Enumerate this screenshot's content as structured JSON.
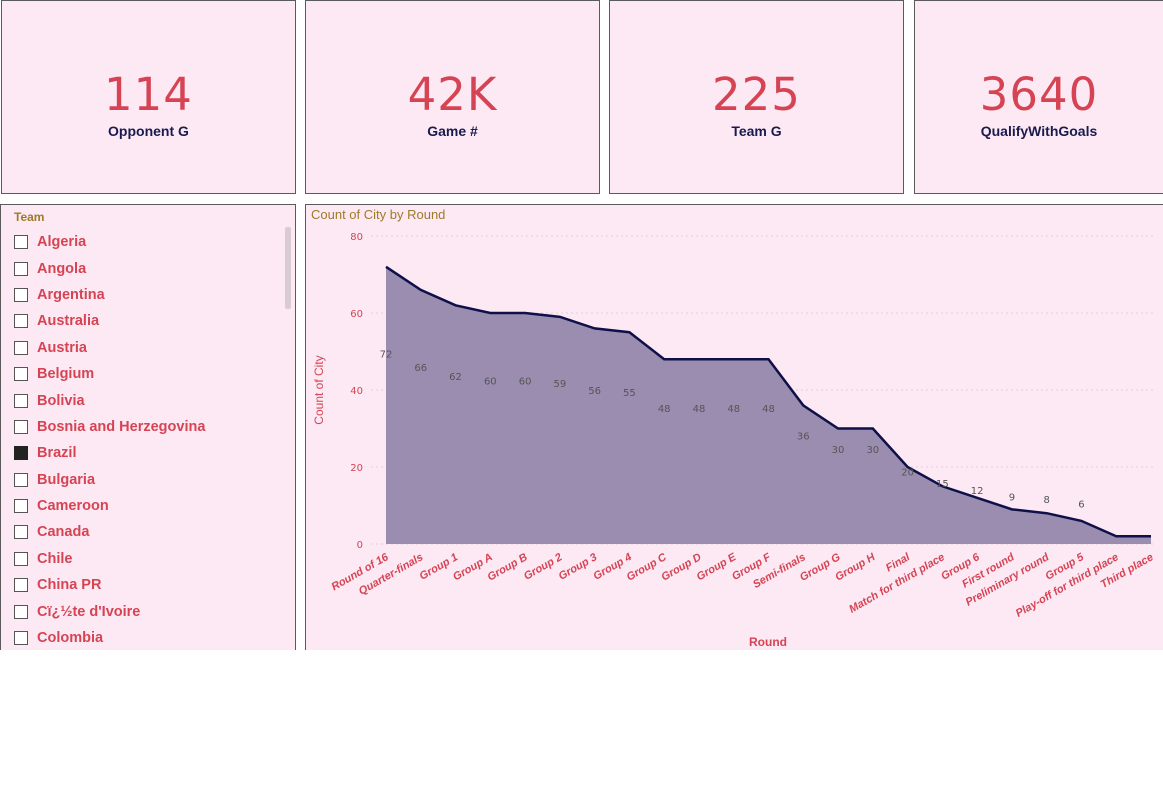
{
  "cards": [
    {
      "value": "114",
      "label": "Opponent G"
    },
    {
      "value": "42K",
      "label": "Game #"
    },
    {
      "value": "225",
      "label": "Team G"
    },
    {
      "value": "3640",
      "label": "QualifyWithGoals"
    }
  ],
  "slicer": {
    "title": "Team",
    "items": [
      {
        "label": "Algeria",
        "checked": false
      },
      {
        "label": "Angola",
        "checked": false
      },
      {
        "label": "Argentina",
        "checked": false
      },
      {
        "label": "Australia",
        "checked": false
      },
      {
        "label": "Austria",
        "checked": false
      },
      {
        "label": "Belgium",
        "checked": false
      },
      {
        "label": "Bolivia",
        "checked": false
      },
      {
        "label": "Bosnia and Herzegovina",
        "checked": false
      },
      {
        "label": "Brazil",
        "checked": true
      },
      {
        "label": "Bulgaria",
        "checked": false
      },
      {
        "label": "Cameroon",
        "checked": false
      },
      {
        "label": "Canada",
        "checked": false
      },
      {
        "label": "Chile",
        "checked": false
      },
      {
        "label": "China PR",
        "checked": false
      },
      {
        "label": "Cï¿½te d'Ivoire",
        "checked": false
      },
      {
        "label": "Colombia",
        "checked": false
      }
    ]
  },
  "chart_data": {
    "type": "area",
    "title": "Count of City by Round",
    "xlabel": "Round",
    "ylabel": "Count of City",
    "ylim": [
      0,
      80
    ],
    "yticks": [
      0,
      20,
      40,
      60,
      80
    ],
    "grid": true,
    "categories": [
      "Round of 16",
      "Quarter-finals",
      "Group 1",
      "Group A",
      "Group B",
      "Group 2",
      "Group 3",
      "Group 4",
      "Group C",
      "Group D",
      "Group E",
      "Group F",
      "Semi-finals",
      "Group G",
      "Group H",
      "Final",
      "Match for third place",
      "Group 6",
      "First round",
      "Preliminary round",
      "Group 5",
      "Play-off for third place",
      "Third place"
    ],
    "values": [
      72,
      66,
      62,
      60,
      60,
      59,
      56,
      55,
      48,
      48,
      48,
      48,
      36,
      30,
      30,
      20,
      15,
      12,
      9,
      8,
      6,
      2,
      2
    ],
    "data_labels": [
      "72",
      "66",
      "62",
      "60",
      "60",
      "59",
      "56",
      "55",
      "48",
      "48",
      "48",
      "48",
      "36",
      "30",
      "30",
      "20",
      "15",
      "12",
      "9",
      "8",
      "6",
      "",
      ""
    ],
    "colors": {
      "fill": "#9a8db0",
      "line": "#0f0f4a",
      "text": "#d64454",
      "title": "#a07a2a"
    }
  }
}
